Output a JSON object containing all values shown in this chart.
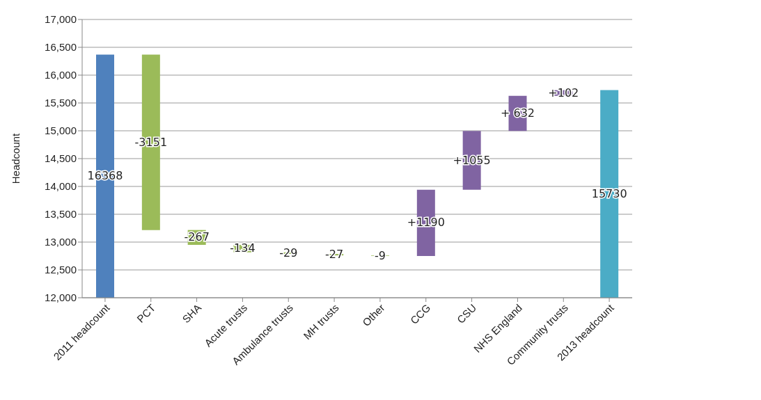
{
  "chart_data": {
    "type": "bar",
    "ylabel": "Headcount",
    "categories": [
      "2011 headcount",
      "PCT",
      "SHA",
      "Acute trusts",
      "Ambulance trusts",
      "MH trusts",
      "Other",
      "CCG",
      "CSU",
      "NHS England",
      "Community trusts",
      "2013 headcount"
    ],
    "values": [
      16368,
      -3151,
      -267,
      -134,
      -29,
      -27,
      -9,
      1190,
      1055,
      632,
      102,
      15730
    ],
    "base": [
      0,
      16368,
      13217,
      12950,
      12816,
      12787,
      12760,
      12751,
      13941,
      14996,
      15628,
      0
    ],
    "colors": [
      "#4f81bd",
      "#9bbb59",
      "#9bbb59",
      "#9bbb59",
      "#9bbb59",
      "#9bbb59",
      "#9bbb59",
      "#8064a2",
      "#8064a2",
      "#8064a2",
      "#8064a2",
      "#4bacc6"
    ],
    "value_labels": [
      "16368",
      "-3151",
      "-267",
      "-134",
      "-29",
      "-27",
      "-9",
      "+1190",
      "+1055",
      "+ 632",
      "+102",
      "15730"
    ],
    "ylim": [
      12000,
      17000
    ],
    "yticks": [
      {
        "value": 12000,
        "label": "12,000"
      },
      {
        "value": 12500,
        "label": "12,500"
      },
      {
        "value": 13000,
        "label": "13,000"
      },
      {
        "value": 13500,
        "label": "13,500"
      },
      {
        "value": 14000,
        "label": "14,000"
      },
      {
        "value": 14500,
        "label": "14,500"
      },
      {
        "value": 15000,
        "label": "15,000"
      },
      {
        "value": 15500,
        "label": "15,500"
      },
      {
        "value": 16000,
        "label": "16,000"
      },
      {
        "value": 16500,
        "label": "16,500"
      },
      {
        "value": 17000,
        "label": "17,000"
      }
    ],
    "grid": "y",
    "legend": false
  }
}
